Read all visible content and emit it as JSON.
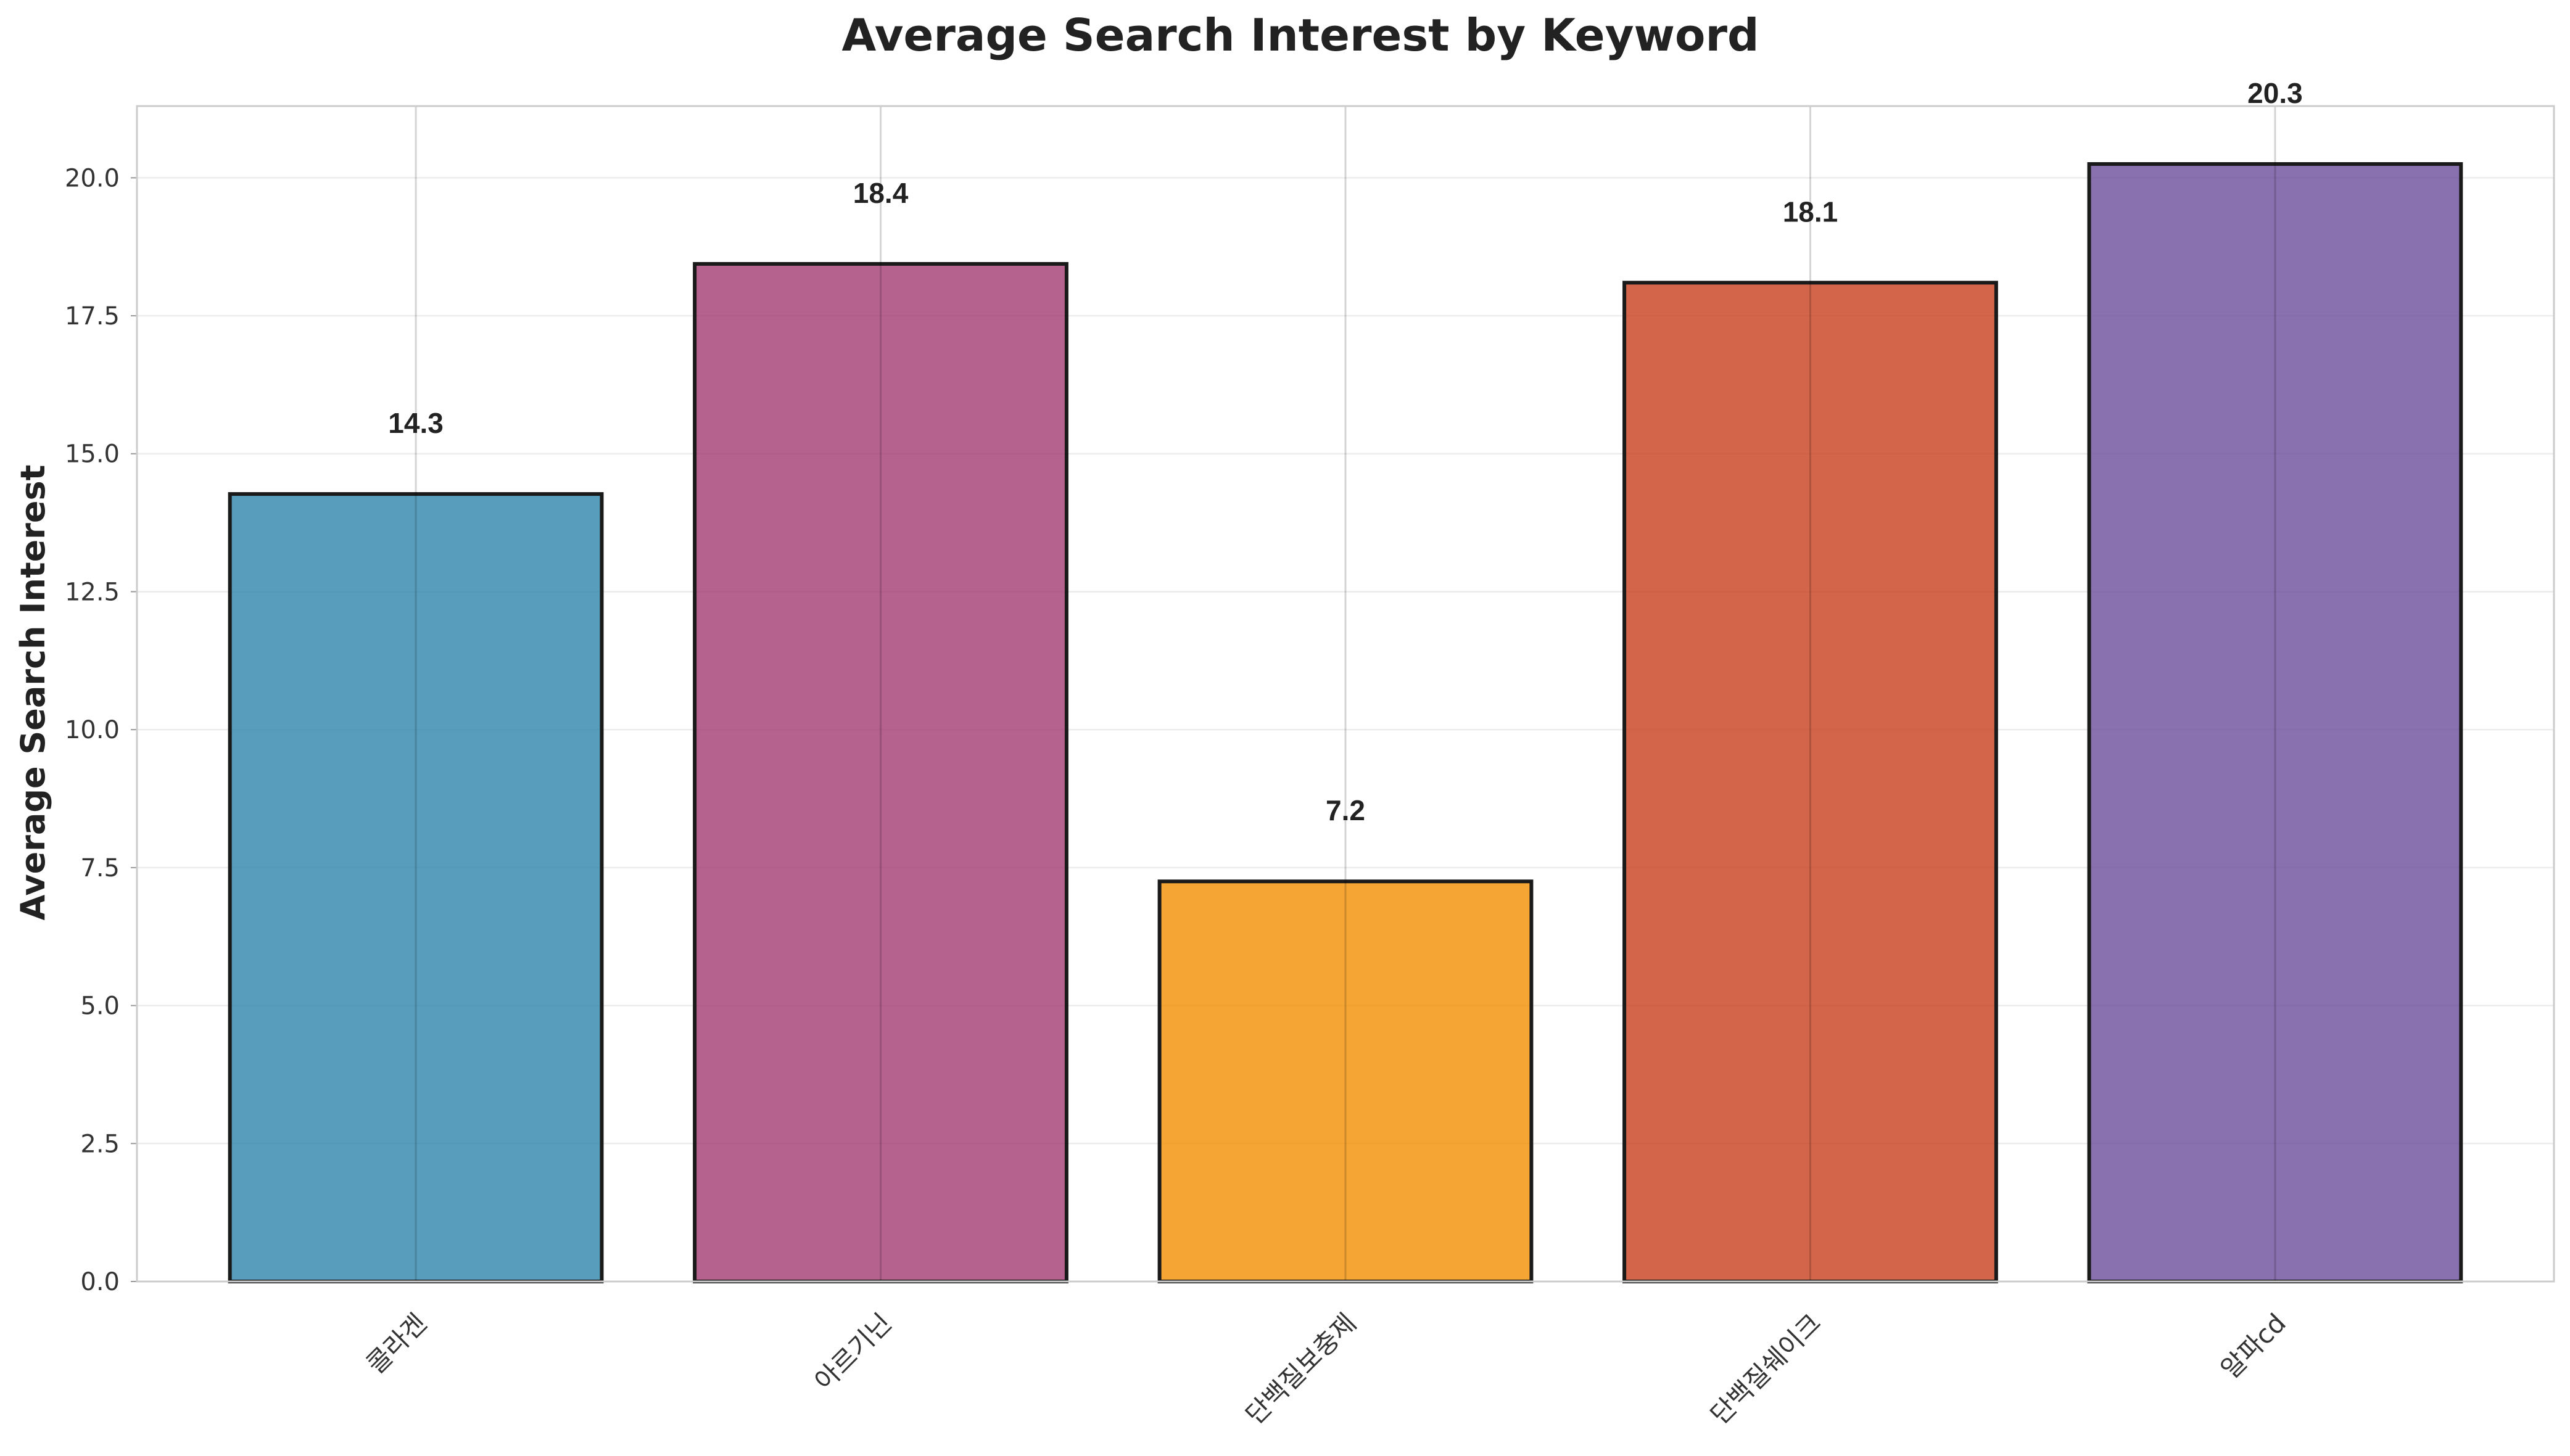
{
  "chart_data": {
    "type": "bar",
    "title": "Average Search Interest by Keyword",
    "xlabel": "",
    "ylabel": "Average Search Interest",
    "categories": [
      "콜라겐",
      "아르기닌",
      "단백질보충제",
      "단백질쉐이크",
      "알파cd"
    ],
    "values": [
      14.27,
      18.44,
      7.25,
      18.1,
      20.25
    ],
    "value_labels": [
      "14.3",
      "18.4",
      "7.2",
      "18.1",
      "20.3"
    ],
    "colors": [
      "#2E86AB",
      "#A23B72",
      "#F18F01",
      "#C73E1D",
      "#6B4C9A"
    ],
    "ylim": [
      0,
      21.3
    ],
    "yticks": [
      "0.0",
      "2.5",
      "5.0",
      "7.5",
      "10.0",
      "12.5",
      "15.0",
      "17.5",
      "20.0"
    ],
    "ytick_values": [
      0,
      2.5,
      5,
      7.5,
      10,
      12.5,
      15,
      17.5,
      20
    ],
    "grid": true,
    "legend": "none"
  }
}
